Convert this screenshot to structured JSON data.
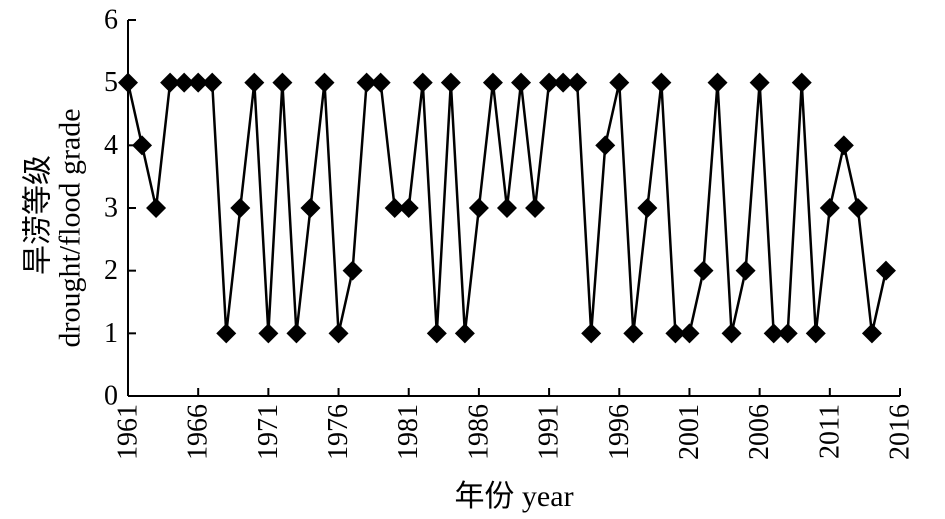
{
  "chart_data": {
    "type": "line",
    "title": "",
    "xlabel": "年份 year",
    "ylabel": "旱涝等级 drought/flood grade",
    "ylabel_lines": [
      "旱涝等级",
      "drought/flood grade"
    ],
    "xlim": [
      1961,
      2016
    ],
    "ylim": [
      0,
      6
    ],
    "x_ticks": [
      "1961",
      "1966",
      "1971",
      "1976",
      "1981",
      "1986",
      "1991",
      "1996",
      "2001",
      "2006",
      "2011",
      "2016"
    ],
    "y_ticks": [
      "0",
      "1",
      "2",
      "3",
      "4",
      "5",
      "6"
    ],
    "grid": false,
    "legend": "none",
    "marker": "diamond",
    "line_color": "#000000",
    "series": [
      {
        "x": [
          1961,
          1962,
          1963,
          1964,
          1965,
          1966,
          1967,
          1968,
          1969,
          1970,
          1971,
          1972,
          1973,
          1974,
          1975,
          1976,
          1977,
          1978,
          1979,
          1980,
          1981,
          1982,
          1983,
          1984,
          1985,
          1986,
          1987,
          1988,
          1989,
          1990,
          1991,
          1992,
          1993,
          1994,
          1995,
          1996,
          1997,
          1998,
          1999,
          2000,
          2001,
          2002,
          2003,
          2004,
          2005,
          2006,
          2007,
          2008,
          2009,
          2010,
          2011,
          2012,
          2013,
          2014,
          2015
        ],
        "values": [
          5,
          4,
          3,
          5,
          5,
          5,
          5,
          1,
          3,
          5,
          1,
          5,
          1,
          3,
          5,
          1,
          2,
          5,
          5,
          3,
          3,
          5,
          1,
          5,
          1,
          3,
          5,
          3,
          5,
          3,
          5,
          5,
          5,
          1,
          4,
          5,
          1,
          3,
          5,
          1,
          1,
          2,
          5,
          1,
          2,
          5,
          1,
          1,
          5,
          1,
          3,
          4,
          3,
          1,
          2
        ]
      }
    ]
  }
}
